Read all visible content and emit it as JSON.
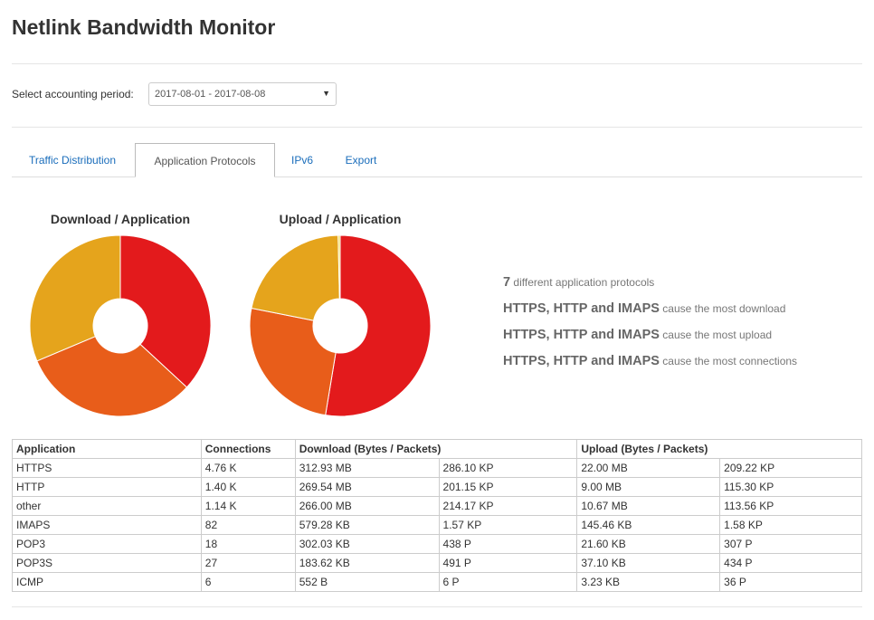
{
  "header": {
    "title": "Netlink Bandwidth Monitor"
  },
  "period": {
    "label": "Select accounting period:",
    "value": "2017-08-01 - 2017-08-08"
  },
  "tabs": [
    "Traffic Distribution",
    "Application Protocols",
    "IPv6",
    "Export"
  ],
  "charts": [
    {
      "type": "pie",
      "title": "Download / Application",
      "categories": [
        "HTTPS",
        "HTTP",
        "other"
      ],
      "values": [
        312.93,
        269.54,
        266.0
      ],
      "colors": [
        "#e31a1c",
        "#e85d1a",
        "#e5a41c"
      ]
    },
    {
      "type": "pie",
      "title": "Upload / Application",
      "categories": [
        "HTTPS",
        "other",
        "HTTP",
        "IMAPS"
      ],
      "values": [
        22.0,
        10.67,
        9.0,
        0.15
      ],
      "colors": [
        "#e31a1c",
        "#e85d1a",
        "#e5a41c",
        "#f2d84a"
      ]
    }
  ],
  "summary": [
    {
      "strong": "7",
      "text": "different application protocols"
    },
    {
      "strong": "HTTPS, HTTP and IMAPS",
      "text": "cause the most download"
    },
    {
      "strong": "HTTPS, HTTP and IMAPS",
      "text": "cause the most upload"
    },
    {
      "strong": "HTTPS, HTTP and IMAPS",
      "text": "cause the most connections"
    }
  ],
  "table": {
    "header": [
      "Application",
      "Connections",
      "Download (Bytes / Packets)",
      "Upload (Bytes / Packets)"
    ],
    "rows": [
      [
        "HTTPS",
        "4.76 K",
        "312.93 MB",
        "286.10 KP",
        "22.00 MB",
        "209.22 KP"
      ],
      [
        "HTTP",
        "1.40 K",
        "269.54 MB",
        "201.15 KP",
        "9.00 MB",
        "115.30 KP"
      ],
      [
        "other",
        "1.14 K",
        "266.00 MB",
        "214.17 KP",
        "10.67 MB",
        "113.56 KP"
      ],
      [
        "IMAPS",
        "82",
        "579.28 KB",
        "1.57 KP",
        "145.46 KB",
        "1.58 KP"
      ],
      [
        "POP3",
        "18",
        "302.03 KB",
        "438 P",
        "21.60 KB",
        "307 P"
      ],
      [
        "POP3S",
        "27",
        "183.62 KB",
        "491 P",
        "37.10 KB",
        "434 P"
      ],
      [
        "ICMP",
        "6",
        "552 B",
        "6 P",
        "3.23 KB",
        "36 P"
      ]
    ]
  }
}
